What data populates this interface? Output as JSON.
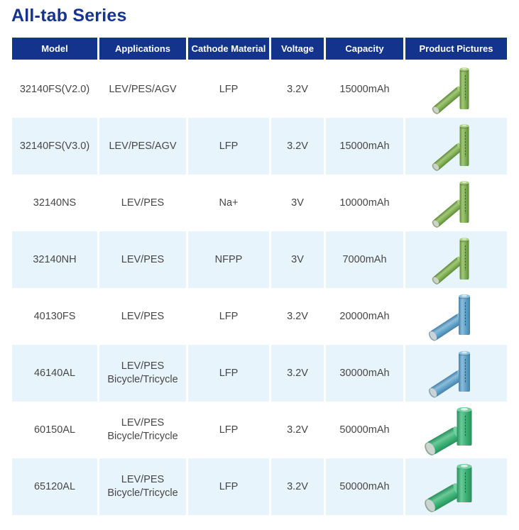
{
  "page": {
    "title": "All-tab Series"
  },
  "table": {
    "columns": [
      {
        "key": "model",
        "label": "Model"
      },
      {
        "key": "applications",
        "label": "Applications"
      },
      {
        "key": "cathode",
        "label": "Cathode Material"
      },
      {
        "key": "voltage",
        "label": "Voltage"
      },
      {
        "key": "capacity",
        "label": "Capacity"
      },
      {
        "key": "pictures",
        "label": "Product Pictures"
      }
    ],
    "rows": [
      {
        "model": "32140FS(V2.0)",
        "applications": [
          "LEV/PES/AGV"
        ],
        "cathode": "LFP",
        "voltage": "3.2V",
        "capacity": "15000mAh",
        "picture": "green_slim",
        "picture_name": "green-cylindrical-cells-photo"
      },
      {
        "model": "32140FS(V3.0)",
        "applications": [
          "LEV/PES/AGV"
        ],
        "cathode": "LFP",
        "voltage": "3.2V",
        "capacity": "15000mAh",
        "picture": "green_slim",
        "picture_name": "green-cylindrical-cells-photo"
      },
      {
        "model": "32140NS",
        "applications": [
          "LEV/PES"
        ],
        "cathode": "Na+",
        "voltage": "3V",
        "capacity": "10000mAh",
        "picture": "green_slim",
        "picture_name": "green-cylindrical-cells-photo"
      },
      {
        "model": "32140NH",
        "applications": [
          "LEV/PES"
        ],
        "cathode": "NFPP",
        "voltage": "3V",
        "capacity": "7000mAh",
        "picture": "green_slim",
        "picture_name": "green-cylindrical-cells-photo"
      },
      {
        "model": "40130FS",
        "applications": [
          "LEV/PES"
        ],
        "cathode": "LFP",
        "voltage": "3.2V",
        "capacity": "20000mAh",
        "picture": "blue",
        "picture_name": "blue-cylindrical-cells-photo"
      },
      {
        "model": "46140AL",
        "applications": [
          "LEV/PES",
          "Bicycle/Tricycle"
        ],
        "cathode": "LFP",
        "voltage": "3.2V",
        "capacity": "30000mAh",
        "picture": "blue",
        "picture_name": "blue-cylindrical-cells-photo"
      },
      {
        "model": "60150AL",
        "applications": [
          "LEV/PES",
          "Bicycle/Tricycle"
        ],
        "cathode": "LFP",
        "voltage": "3.2V",
        "capacity": "50000mAh",
        "picture": "green_fat",
        "picture_name": "seagreen-cylindrical-cells-photo"
      },
      {
        "model": "65120AL",
        "applications": [
          "LEV/PES",
          "Bicycle/Tricycle"
        ],
        "cathode": "LFP",
        "voltage": "3.2V",
        "capacity": "50000mAh",
        "picture": "green_fat",
        "picture_name": "seagreen-cylindrical-cells-photo"
      }
    ]
  },
  "pictures": {
    "green_slim": {
      "body": "#84b257",
      "hi": "#a2c878",
      "shade": "#5f8a3b",
      "cap": "#a9cf7e",
      "tip": "#d9ebc2",
      "base": "#cdd3c7",
      "rim": "#93a487",
      "mark": "#2f4a26"
    },
    "blue": {
      "body": "#64a4ca",
      "hi": "#8cbedb",
      "shade": "#4781a9",
      "cap": "#90c4de",
      "tip": "#d6eaf4",
      "base": "#c9d4da",
      "rim": "#8fa4ae",
      "mark": "#1f4258"
    },
    "green_fat": {
      "body": "#3eb377",
      "hi": "#6cc99a",
      "shade": "#27915c",
      "cap": "#74cfa2",
      "tip": "#d9efe4",
      "base": "#ccd6d0",
      "rim": "#91a79a",
      "mark": "#145234"
    }
  },
  "colors": {
    "title": "#16338f",
    "header_bg": "#14338c",
    "header_text": "#ffffff",
    "row_bg": "#ffffff",
    "row_alt_bg": "#e8f4fb",
    "cell_text": "#474747"
  }
}
